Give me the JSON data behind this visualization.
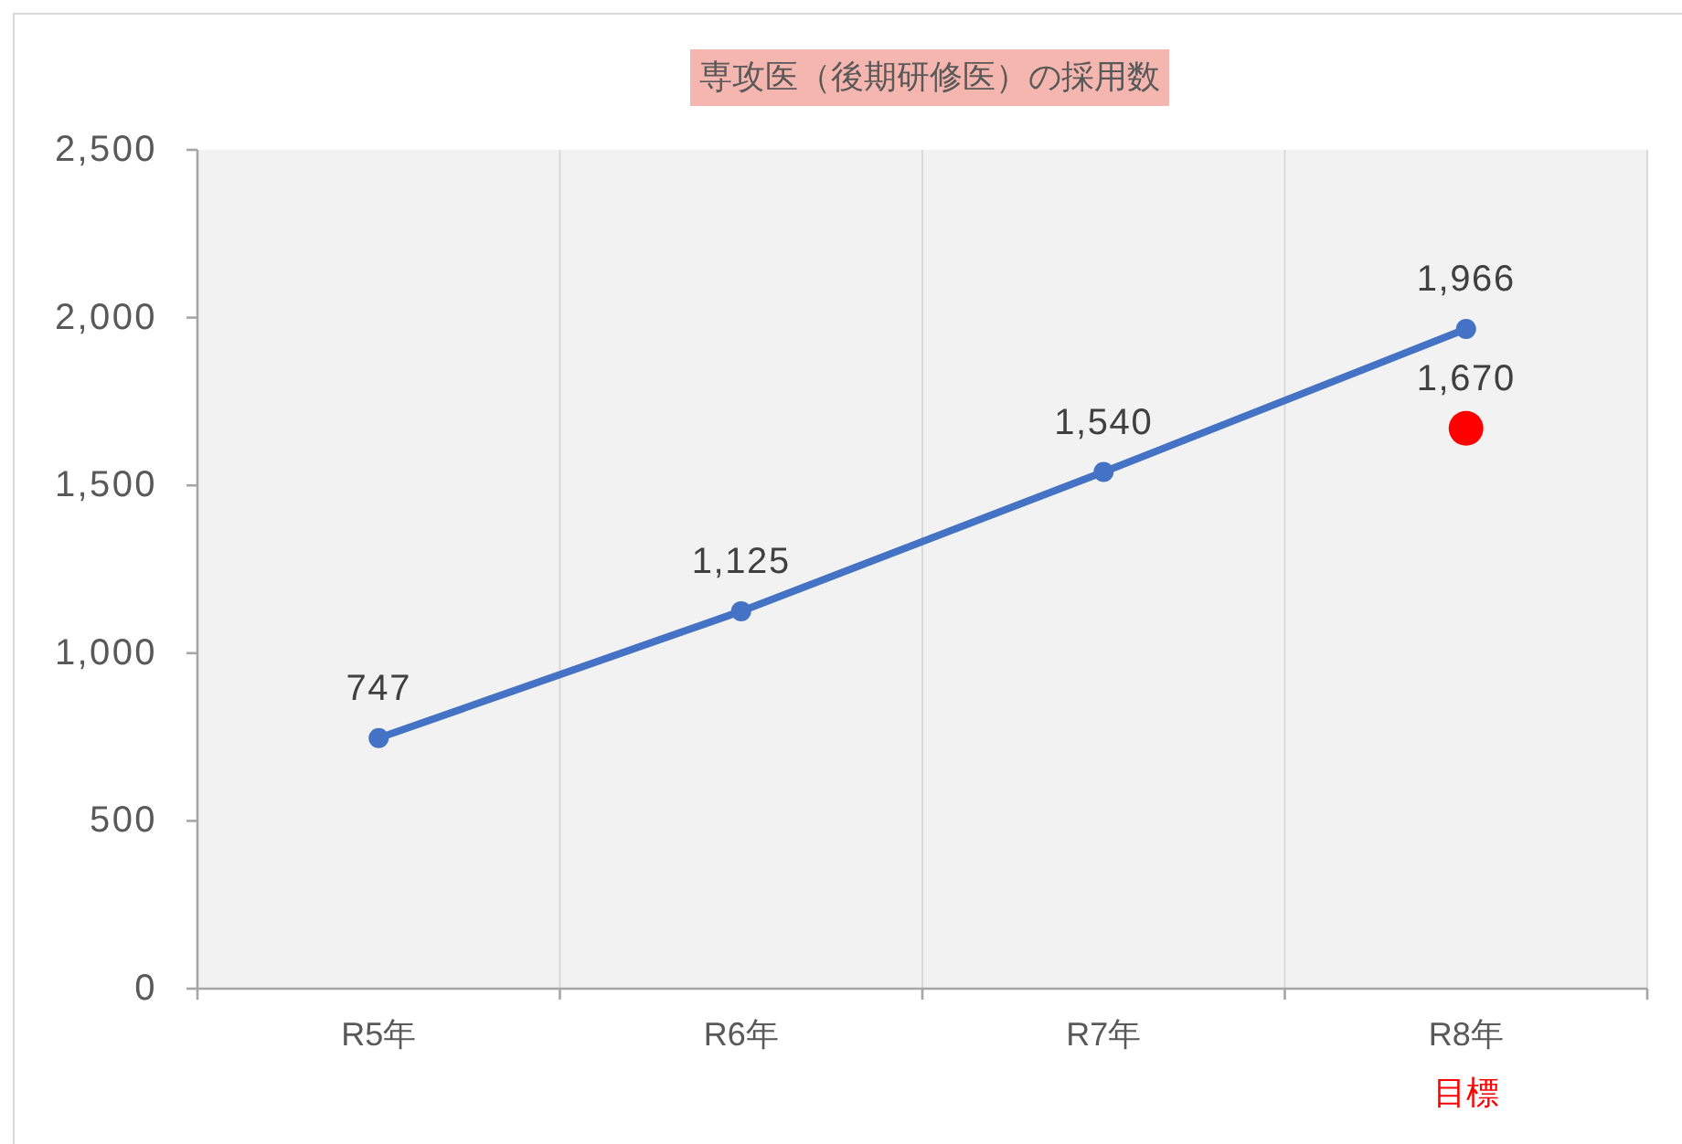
{
  "chart_data": {
    "type": "line",
    "title": "専攻医（後期研修医）の採用数",
    "categories": [
      "R5年",
      "R6年",
      "R7年",
      "R8年"
    ],
    "series": [
      {
        "color": "#4472c4",
        "values": [
          747,
          1125,
          1540,
          1966
        ],
        "value_labels": [
          "747",
          "1,125",
          "1,540",
          "1,966"
        ]
      },
      {
        "type": "scatter",
        "color": "#ff0000",
        "values": [
          null,
          null,
          null,
          1670
        ],
        "value_labels": [
          null,
          null,
          null,
          "1,670"
        ]
      }
    ],
    "ylim": [
      0,
      2500
    ],
    "yticks": [
      0,
      500,
      {
        "value": 1000,
        "label": "1,000"
      },
      {
        "value": 1500,
        "label": "1,500"
      },
      {
        "value": 2000,
        "label": "2,000"
      },
      {
        "value": 2500,
        "label": "2,500"
      }
    ],
    "annotations": [
      "目標"
    ],
    "grid": "x",
    "marker": "circle",
    "line_style": "solid"
  }
}
